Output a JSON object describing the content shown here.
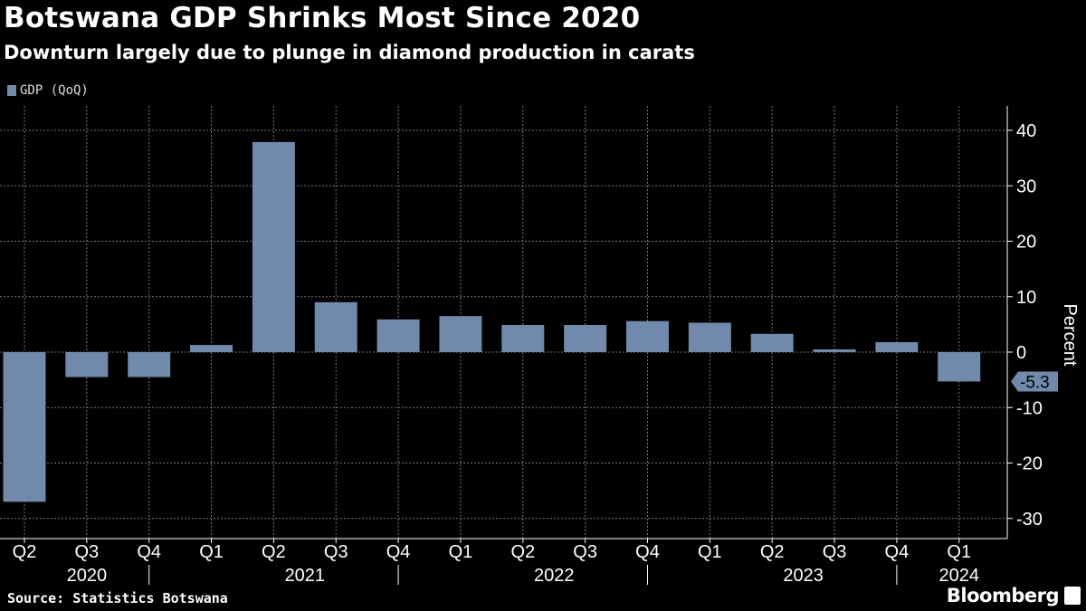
{
  "chart_data": {
    "type": "bar",
    "title": "Botswana GDP Shrinks Most Since 2020",
    "subtitle": "Downturn largely due to plunge in diamond production in carats",
    "ylabel": "Percent",
    "xlabel": "",
    "ylim": [
      -33,
      44
    ],
    "yticks": [
      40,
      30,
      20,
      10,
      0,
      -10,
      -20,
      -30
    ],
    "grid": true,
    "legend_position": "top-left",
    "categories": [
      "Q2",
      "Q3",
      "Q4",
      "Q1",
      "Q2",
      "Q3",
      "Q4",
      "Q1",
      "Q2",
      "Q3",
      "Q4",
      "Q1",
      "Q2",
      "Q3",
      "Q4",
      "Q1"
    ],
    "years": [
      {
        "label": "2020",
        "start": 0,
        "end": 2
      },
      {
        "label": "2021",
        "start": 3,
        "end": 6
      },
      {
        "label": "2022",
        "start": 7,
        "end": 10
      },
      {
        "label": "2023",
        "start": 11,
        "end": 14
      },
      {
        "label": "2024",
        "start": 15,
        "end": 15
      }
    ],
    "series": [
      {
        "name": "GDP (QoQ)",
        "color": "#7189ab",
        "values": [
          -27.0,
          -4.5,
          -4.5,
          1.3,
          37.9,
          9.0,
          5.9,
          6.5,
          4.9,
          4.9,
          5.6,
          5.3,
          3.3,
          0.5,
          1.8,
          -5.3
        ]
      }
    ],
    "last_value_label": "-5.3"
  },
  "source": "Source: Statistics Botswana",
  "brand": "Bloomberg"
}
